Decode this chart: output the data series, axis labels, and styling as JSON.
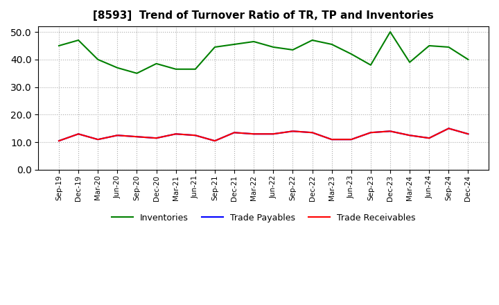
{
  "title": "[8593]  Trend of Turnover Ratio of TR, TP and Inventories",
  "x_labels": [
    "Sep-19",
    "Dec-19",
    "Mar-20",
    "Jun-20",
    "Sep-20",
    "Dec-20",
    "Mar-21",
    "Jun-21",
    "Sep-21",
    "Dec-21",
    "Mar-22",
    "Jun-22",
    "Sep-22",
    "Dec-22",
    "Mar-23",
    "Jun-23",
    "Sep-23",
    "Dec-23",
    "Mar-24",
    "Jun-24",
    "Sep-24",
    "Dec-24"
  ],
  "trade_receivables": [
    null,
    null,
    null,
    null,
    null,
    null,
    null,
    null,
    null,
    null,
    null,
    null,
    null,
    null,
    null,
    null,
    null,
    null,
    null,
    null,
    null,
    null
  ],
  "trade_payables": [
    10.5,
    13.0,
    11.0,
    12.5,
    12.0,
    11.5,
    13.0,
    12.5,
    10.5,
    13.5,
    13.0,
    13.0,
    14.0,
    13.5,
    11.0,
    11.0,
    13.5,
    14.0,
    12.5,
    11.5,
    15.0,
    13.0
  ],
  "inventories": [
    45.0,
    47.0,
    40.0,
    37.0,
    35.0,
    38.5,
    36.5,
    36.5,
    44.5,
    45.5,
    46.5,
    44.5,
    43.5,
    47.0,
    45.5,
    42.0,
    38.0,
    50.0,
    39.0,
    45.0,
    44.5,
    40.0
  ],
  "ylim": [
    0,
    52
  ],
  "yticks": [
    0.0,
    10.0,
    20.0,
    30.0,
    40.0,
    50.0
  ],
  "tr_color": "#ff0000",
  "tp_color": "#0000ff",
  "inv_color": "#008000",
  "background_color": "#ffffff",
  "grid_color": "#aaaaaa"
}
